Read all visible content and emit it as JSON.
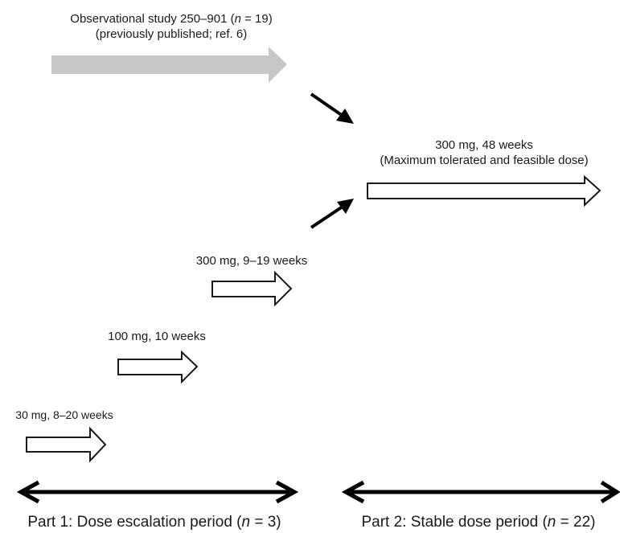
{
  "observational": {
    "line1_pre": "Observational study 250–901 (",
    "n_symbol": "n",
    "line1_post": " = 19)",
    "line2": "(previously published; ref. 6)"
  },
  "stable_dose": {
    "line1": "300 mg, 48 weeks",
    "line2": "(Maximum tolerated and feasible dose)"
  },
  "doses": {
    "dose_300": "300 mg, 9–19 weeks",
    "dose_100": "100 mg, 10 weeks",
    "dose_30": "30 mg, 8–20 weeks"
  },
  "periods": {
    "part1_pre": "Part 1: Dose escalation period (",
    "part1_n": "n",
    "part1_post": " = 3)",
    "part2_pre": "Part 2: Stable dose period (",
    "part2_n": "n",
    "part2_post": " = 22)"
  },
  "colors": {
    "observational_arrow": "#c7c7c7",
    "outline_arrow": "#1a1a1a"
  }
}
